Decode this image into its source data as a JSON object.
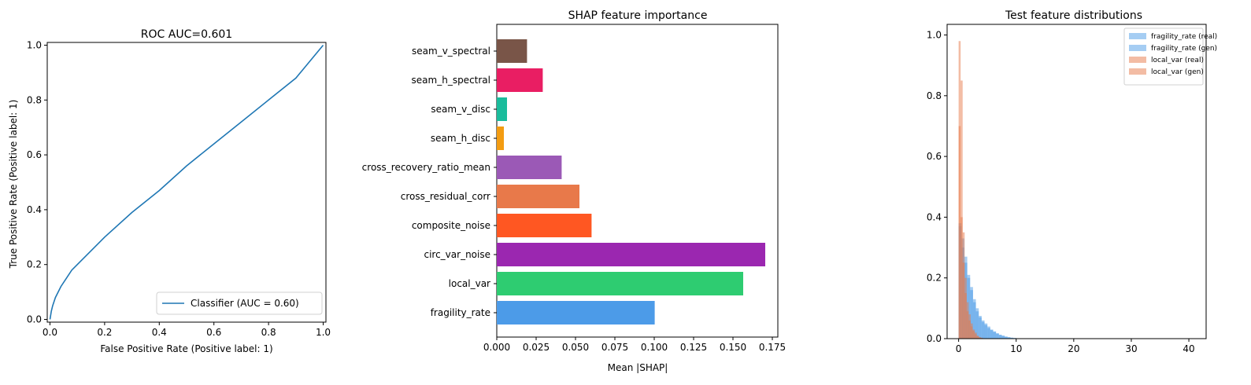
{
  "chart_data": [
    {
      "type": "line",
      "title": "ROC  AUC=0.601",
      "xlabel": "False Positive Rate (Positive label: 1)",
      "ylabel": "True Positive Rate (Positive label: 1)",
      "xlim": [
        -0.01,
        1.01
      ],
      "ylim": [
        -0.01,
        1.01
      ],
      "xticks": [
        0.0,
        0.2,
        0.4,
        0.6,
        0.8,
        1.0
      ],
      "yticks": [
        0.0,
        0.2,
        0.4,
        0.6,
        0.8,
        1.0
      ],
      "tick_labels": [
        "0.0",
        "0.2",
        "0.4",
        "0.6",
        "0.8",
        "1.0"
      ],
      "grid": false,
      "legend_position": "lower-right",
      "series": [
        {
          "name": "Classifier (AUC = 0.60)",
          "color": "#1f77b4",
          "x": [
            0.0,
            0.005,
            0.01,
            0.02,
            0.04,
            0.06,
            0.08,
            0.1,
            0.15,
            0.2,
            0.3,
            0.4,
            0.5,
            0.6,
            0.7,
            0.8,
            0.9,
            0.95,
            1.0
          ],
          "y": [
            0.0,
            0.03,
            0.05,
            0.08,
            0.12,
            0.15,
            0.18,
            0.2,
            0.25,
            0.3,
            0.39,
            0.47,
            0.56,
            0.64,
            0.72,
            0.8,
            0.88,
            0.94,
            1.0
          ]
        }
      ]
    },
    {
      "type": "bar",
      "orientation": "horizontal",
      "title": "SHAP feature importance",
      "xlabel": "Mean |SHAP|",
      "ylabel": "",
      "xlim": [
        0,
        0.1785
      ],
      "xticks": [
        0.0,
        0.025,
        0.05,
        0.075,
        0.1,
        0.125,
        0.15,
        0.175
      ],
      "tick_labels": [
        "0.000",
        "0.025",
        "0.050",
        "0.075",
        "0.100",
        "0.125",
        "0.150",
        "0.175"
      ],
      "grid": false,
      "categories": [
        "fragility_rate",
        "local_var",
        "circ_var_noise",
        "composite_noise",
        "cross_residual_corr",
        "cross_recovery_ratio_mean",
        "seam_h_disc",
        "seam_v_disc",
        "seam_h_spectral",
        "seam_v_spectral"
      ],
      "values": [
        0.1003,
        0.1565,
        0.1705,
        0.0602,
        0.0525,
        0.0412,
        0.0045,
        0.0065,
        0.0292,
        0.0192
      ],
      "colors": [
        "#4c9be8",
        "#2ecc71",
        "#9b27b0",
        "#ff5722",
        "#e8794a",
        "#9b59b6",
        "#f39c12",
        "#1abc9c",
        "#e91e63",
        "#795548"
      ]
    },
    {
      "type": "histogram",
      "title": "Test feature distributions",
      "xlabel": "",
      "ylabel": "",
      "xlim": [
        -2,
        43
      ],
      "ylim": [
        0,
        1.035
      ],
      "xticks": [
        0,
        10,
        20,
        30,
        40
      ],
      "x_tick_labels": [
        "0",
        "10",
        "20",
        "30",
        "40"
      ],
      "yticks": [
        0.0,
        0.2,
        0.4,
        0.6,
        0.8,
        1.0
      ],
      "y_tick_labels": [
        "0.0",
        "0.2",
        "0.4",
        "0.6",
        "0.8",
        "1.0"
      ],
      "grid": false,
      "legend_position": "top-right",
      "series": [
        {
          "name": "fragility_rate (real)",
          "color": "#4c9be8",
          "bin_edges": [
            0,
            0.5,
            1.0,
            1.5,
            2.0,
            2.5,
            3.0,
            3.5,
            4.0,
            4.5,
            5.0,
            5.5,
            6.0,
            6.5,
            7.0,
            7.5,
            8.0,
            8.5,
            9.0,
            9.5,
            10.0
          ],
          "values": [
            0.37,
            0.3,
            0.25,
            0.2,
            0.16,
            0.12,
            0.09,
            0.07,
            0.055,
            0.045,
            0.035,
            0.028,
            0.022,
            0.016,
            0.012,
            0.009,
            0.006,
            0.004,
            0.003,
            0.002
          ]
        },
        {
          "name": "fragility_rate (gen)",
          "color": "#4c9be8",
          "bin_edges": [
            0,
            0.5,
            1.0,
            1.5,
            2.0,
            2.5,
            3.0,
            3.5,
            4.0,
            4.5,
            5.0,
            5.5,
            6.0,
            6.5,
            7.0,
            7.5,
            8.0,
            8.5,
            9.0,
            9.5,
            10.0
          ],
          "values": [
            0.38,
            0.33,
            0.27,
            0.21,
            0.17,
            0.13,
            0.1,
            0.075,
            0.06,
            0.05,
            0.04,
            0.03,
            0.024,
            0.018,
            0.013,
            0.01,
            0.007,
            0.005,
            0.003,
            0.002
          ]
        },
        {
          "name": "local_var (real)",
          "color": "#e8794a",
          "bin_edges": [
            0,
            0.35,
            0.7,
            1.05,
            1.4,
            1.75,
            2.1,
            2.45,
            2.8,
            3.15,
            3.5,
            3.85,
            4.2
          ],
          "values": [
            0.98,
            0.85,
            0.35,
            0.2,
            0.12,
            0.08,
            0.05,
            0.03,
            0.02,
            0.01,
            0.005,
            0.003
          ]
        },
        {
          "name": "local_var (gen)",
          "color": "#e8794a",
          "bin_edges": [
            0,
            0.35,
            0.7,
            1.05,
            1.4,
            1.75,
            2.1,
            2.45,
            2.8,
            3.15,
            3.5,
            3.85,
            4.2
          ],
          "values": [
            0.7,
            0.4,
            0.25,
            0.15,
            0.09,
            0.06,
            0.04,
            0.025,
            0.015,
            0.008,
            0.004,
            0.002
          ]
        }
      ]
    }
  ]
}
